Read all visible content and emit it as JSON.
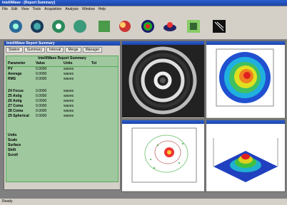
{
  "window": {
    "title": "IntelliWave - [Report Summary]",
    "menu": [
      "File",
      "Edit",
      "View",
      "Tools",
      "Acquisition",
      "Analysis",
      "Window",
      "Help"
    ]
  },
  "report": {
    "tabs": [
      "Station",
      "Summary",
      "Interval",
      "Merge",
      "Manager"
    ],
    "heading": "IntelliWave Report Summary",
    "columns": [
      "Parameter",
      "Value",
      "Units",
      "Tol"
    ],
    "rows": [
      [
        "PV",
        "0.0000",
        "waves"
      ],
      [
        "Average",
        "0.0000",
        "waves"
      ],
      [
        "RMS",
        "0.0000",
        "waves"
      ],
      [
        "Z4 Focus",
        "0.0000",
        "waves"
      ],
      [
        "Z5 Astig",
        "0.0000",
        "waves"
      ],
      [
        "Z6 Astig",
        "0.0000",
        "waves"
      ],
      [
        "Z7 Coma",
        "0.0000",
        "waves"
      ],
      [
        "Z8 Coma",
        "0.0000",
        "waves"
      ],
      [
        "Z9 Spherical",
        "0.0000",
        "waves"
      ]
    ],
    "labels": [
      "Units",
      "Scale",
      "Surface",
      "Shift",
      "Scroll"
    ]
  },
  "status": "Ready"
}
